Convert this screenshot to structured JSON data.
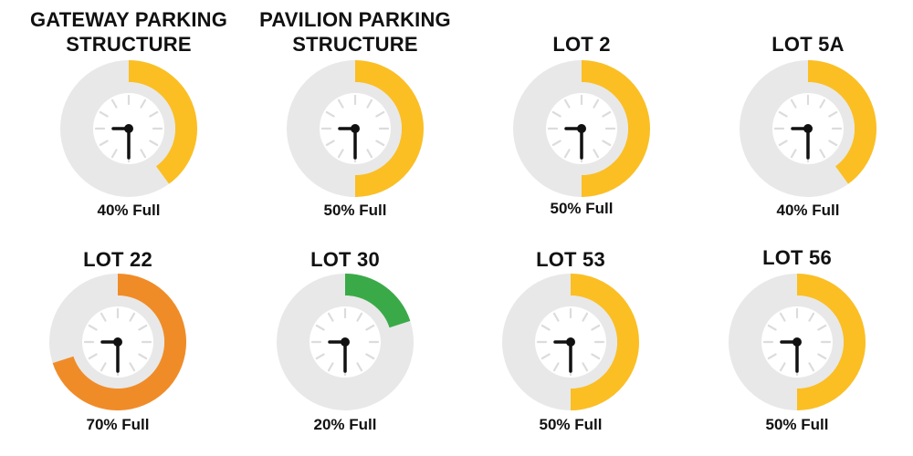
{
  "chart_data": {
    "type": "gauge-grid",
    "track_color": "#e8e8e8",
    "face_color": "#ffffff",
    "tick_color": "#dcdcdc",
    "hand_color": "#111111",
    "items": [
      {
        "title": "GATEWAY PARKING\nSTRUCTURE",
        "value": 40,
        "label": "40% Full",
        "color": "#fbbf24"
      },
      {
        "title": "PAVILION PARKING\nSTRUCTURE",
        "value": 50,
        "label": "50% Full",
        "color": "#fbbf24"
      },
      {
        "title": "LOT 2",
        "value": 50,
        "label": "50% Full",
        "color": "#fbbf24"
      },
      {
        "title": "LOT 5A",
        "value": 40,
        "label": "40% Full",
        "color": "#fbbf24"
      },
      {
        "title": "LOT 22",
        "value": 70,
        "label": "70% Full",
        "color": "#f08c28"
      },
      {
        "title": "LOT 30",
        "value": 20,
        "label": "20% Full",
        "color": "#3aaa48"
      },
      {
        "title": "LOT 53",
        "value": 50,
        "label": "50% Full",
        "color": "#fbbf24"
      },
      {
        "title": "LOT 56",
        "value": 50,
        "label": "50% Full",
        "color": "#fbbf24"
      }
    ]
  }
}
